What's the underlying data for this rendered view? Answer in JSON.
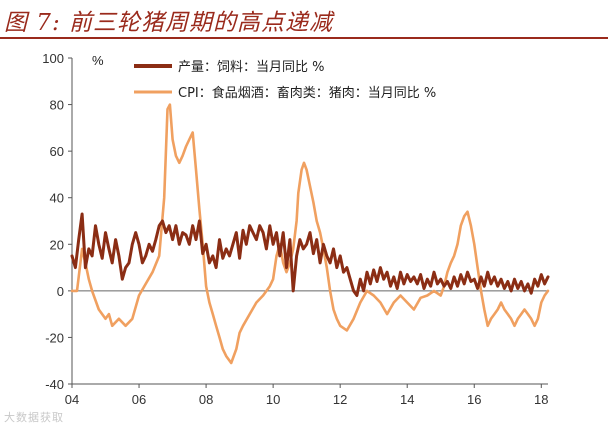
{
  "figure": {
    "title": "图 7:  前三轮猪周期的高点递减",
    "watermark": "大数据获取"
  },
  "colors": {
    "title": "#9a2a1c",
    "feed_series": "#8b2d14",
    "cpi_series": "#f0a060"
  },
  "chart_data": {
    "type": "line",
    "unit": "%",
    "ylim": [
      -40,
      100
    ],
    "yticks": [
      -40,
      -20,
      0,
      20,
      40,
      60,
      80,
      100
    ],
    "xlim": [
      2004,
      2018.2
    ],
    "xticks": [
      {
        "value": 2004,
        "label": "04"
      },
      {
        "value": 2006,
        "label": "06"
      },
      {
        "value": 2008,
        "label": "08"
      },
      {
        "value": 2010,
        "label": "10"
      },
      {
        "value": 2012,
        "label": "12"
      },
      {
        "value": 2014,
        "label": "14"
      },
      {
        "value": 2016,
        "label": "16"
      },
      {
        "value": 2018,
        "label": "18"
      }
    ],
    "legend_position": "top-center",
    "series": [
      {
        "name": "产量：饲料：当月同比 %",
        "color": "#8b2d14",
        "points": [
          [
            2004.0,
            15
          ],
          [
            2004.1,
            10
          ],
          [
            2004.2,
            22
          ],
          [
            2004.3,
            33
          ],
          [
            2004.4,
            10
          ],
          [
            2004.5,
            18
          ],
          [
            2004.6,
            15
          ],
          [
            2004.7,
            28
          ],
          [
            2004.8,
            20
          ],
          [
            2004.9,
            14
          ],
          [
            2005.0,
            25
          ],
          [
            2005.1,
            18
          ],
          [
            2005.2,
            12
          ],
          [
            2005.3,
            22
          ],
          [
            2005.4,
            15
          ],
          [
            2005.5,
            5
          ],
          [
            2005.6,
            10
          ],
          [
            2005.7,
            12
          ],
          [
            2005.8,
            20
          ],
          [
            2005.9,
            25
          ],
          [
            2006.0,
            20
          ],
          [
            2006.1,
            12
          ],
          [
            2006.2,
            15
          ],
          [
            2006.3,
            20
          ],
          [
            2006.4,
            17
          ],
          [
            2006.5,
            22
          ],
          [
            2006.6,
            28
          ],
          [
            2006.7,
            30
          ],
          [
            2006.8,
            25
          ],
          [
            2006.9,
            28
          ],
          [
            2007.0,
            22
          ],
          [
            2007.1,
            28
          ],
          [
            2007.2,
            20
          ],
          [
            2007.3,
            25
          ],
          [
            2007.4,
            24
          ],
          [
            2007.5,
            20
          ],
          [
            2007.6,
            28
          ],
          [
            2007.7,
            22
          ],
          [
            2007.8,
            30
          ],
          [
            2007.9,
            16
          ],
          [
            2008.0,
            20
          ],
          [
            2008.1,
            12
          ],
          [
            2008.2,
            15
          ],
          [
            2008.3,
            10
          ],
          [
            2008.4,
            22
          ],
          [
            2008.5,
            14
          ],
          [
            2008.6,
            18
          ],
          [
            2008.7,
            15
          ],
          [
            2008.8,
            20
          ],
          [
            2008.9,
            25
          ],
          [
            2009.0,
            14
          ],
          [
            2009.1,
            26
          ],
          [
            2009.2,
            20
          ],
          [
            2009.3,
            28
          ],
          [
            2009.4,
            25
          ],
          [
            2009.5,
            22
          ],
          [
            2009.6,
            28
          ],
          [
            2009.7,
            25
          ],
          [
            2009.8,
            18
          ],
          [
            2009.9,
            28
          ],
          [
            2010.0,
            20
          ],
          [
            2010.1,
            25
          ],
          [
            2010.2,
            15
          ],
          [
            2010.3,
            25
          ],
          [
            2010.4,
            10
          ],
          [
            2010.5,
            22
          ],
          [
            2010.6,
            0
          ],
          [
            2010.7,
            15
          ],
          [
            2010.8,
            22
          ],
          [
            2010.9,
            18
          ],
          [
            2011.0,
            20
          ],
          [
            2011.1,
            25
          ],
          [
            2011.2,
            16
          ],
          [
            2011.3,
            22
          ],
          [
            2011.4,
            12
          ],
          [
            2011.5,
            20
          ],
          [
            2011.6,
            15
          ],
          [
            2011.7,
            12
          ],
          [
            2011.8,
            18
          ],
          [
            2011.9,
            10
          ],
          [
            2012.0,
            15
          ],
          [
            2012.1,
            8
          ],
          [
            2012.2,
            10
          ],
          [
            2012.3,
            5
          ],
          [
            2012.4,
            0
          ],
          [
            2012.5,
            -2
          ],
          [
            2012.6,
            5
          ],
          [
            2012.7,
            0
          ],
          [
            2012.8,
            8
          ],
          [
            2012.9,
            3
          ],
          [
            2013.0,
            9
          ],
          [
            2013.1,
            4
          ],
          [
            2013.2,
            10
          ],
          [
            2013.3,
            5
          ],
          [
            2013.4,
            8
          ],
          [
            2013.5,
            2
          ],
          [
            2013.6,
            6
          ],
          [
            2013.7,
            1
          ],
          [
            2013.8,
            8
          ],
          [
            2013.9,
            3
          ],
          [
            2014.0,
            7
          ],
          [
            2014.1,
            4
          ],
          [
            2014.2,
            6
          ],
          [
            2014.3,
            3
          ],
          [
            2014.4,
            7
          ],
          [
            2014.5,
            1
          ],
          [
            2014.6,
            5
          ],
          [
            2014.7,
            2
          ],
          [
            2014.8,
            8
          ],
          [
            2014.9,
            3
          ],
          [
            2015.0,
            5
          ],
          [
            2015.1,
            2
          ],
          [
            2015.2,
            4
          ],
          [
            2015.3,
            1
          ],
          [
            2015.4,
            6
          ],
          [
            2015.5,
            2
          ],
          [
            2015.6,
            7
          ],
          [
            2015.7,
            3
          ],
          [
            2015.8,
            8
          ],
          [
            2015.9,
            4
          ],
          [
            2016.0,
            5
          ],
          [
            2016.1,
            1
          ],
          [
            2016.2,
            6
          ],
          [
            2016.3,
            2
          ],
          [
            2016.4,
            8
          ],
          [
            2016.5,
            3
          ],
          [
            2016.6,
            6
          ],
          [
            2016.7,
            2
          ],
          [
            2016.8,
            5
          ],
          [
            2016.9,
            1
          ],
          [
            2017.0,
            4
          ],
          [
            2017.1,
            0
          ],
          [
            2017.2,
            5
          ],
          [
            2017.3,
            1
          ],
          [
            2017.4,
            4
          ],
          [
            2017.5,
            0
          ],
          [
            2017.6,
            3
          ],
          [
            2017.7,
            -1
          ],
          [
            2017.8,
            5
          ],
          [
            2017.9,
            2
          ],
          [
            2018.0,
            7
          ],
          [
            2018.1,
            3
          ],
          [
            2018.2,
            6
          ]
        ]
      },
      {
        "name": "CPI：食品烟酒：畜肉类：猪肉：当月同比 %",
        "color": "#f0a060",
        "points": [
          [
            2004.0,
            0
          ],
          [
            2004.15,
            0
          ],
          [
            2004.3,
            18
          ],
          [
            2004.4,
            12
          ],
          [
            2004.5,
            5
          ],
          [
            2004.6,
            0
          ],
          [
            2004.8,
            -8
          ],
          [
            2005.0,
            -12
          ],
          [
            2005.1,
            -10
          ],
          [
            2005.2,
            -15
          ],
          [
            2005.4,
            -12
          ],
          [
            2005.6,
            -15
          ],
          [
            2005.8,
            -12
          ],
          [
            2006.0,
            -2
          ],
          [
            2006.2,
            3
          ],
          [
            2006.4,
            8
          ],
          [
            2006.6,
            15
          ],
          [
            2006.75,
            40
          ],
          [
            2006.85,
            78
          ],
          [
            2006.92,
            80
          ],
          [
            2007.0,
            65
          ],
          [
            2007.1,
            58
          ],
          [
            2007.2,
            55
          ],
          [
            2007.3,
            58
          ],
          [
            2007.4,
            62
          ],
          [
            2007.5,
            65
          ],
          [
            2007.6,
            68
          ],
          [
            2007.7,
            52
          ],
          [
            2007.8,
            35
          ],
          [
            2007.9,
            20
          ],
          [
            2008.0,
            2
          ],
          [
            2008.1,
            -5
          ],
          [
            2008.2,
            -10
          ],
          [
            2008.3,
            -15
          ],
          [
            2008.4,
            -20
          ],
          [
            2008.5,
            -25
          ],
          [
            2008.6,
            -28
          ],
          [
            2008.75,
            -31
          ],
          [
            2008.9,
            -25
          ],
          [
            2009.0,
            -18
          ],
          [
            2009.1,
            -15
          ],
          [
            2009.3,
            -10
          ],
          [
            2009.5,
            -5
          ],
          [
            2009.7,
            -2
          ],
          [
            2009.9,
            2
          ],
          [
            2010.0,
            5
          ],
          [
            2010.1,
            15
          ],
          [
            2010.2,
            20
          ],
          [
            2010.3,
            12
          ],
          [
            2010.4,
            8
          ],
          [
            2010.5,
            12
          ],
          [
            2010.6,
            18
          ],
          [
            2010.7,
            30
          ],
          [
            2010.75,
            42
          ],
          [
            2010.85,
            52
          ],
          [
            2010.92,
            55
          ],
          [
            2011.0,
            52
          ],
          [
            2011.1,
            45
          ],
          [
            2011.2,
            38
          ],
          [
            2011.3,
            30
          ],
          [
            2011.4,
            25
          ],
          [
            2011.5,
            18
          ],
          [
            2011.6,
            10
          ],
          [
            2011.7,
            0
          ],
          [
            2011.8,
            -8
          ],
          [
            2011.9,
            -12
          ],
          [
            2012.0,
            -15
          ],
          [
            2012.2,
            -17
          ],
          [
            2012.4,
            -12
          ],
          [
            2012.6,
            -5
          ],
          [
            2012.8,
            0
          ],
          [
            2013.0,
            -2
          ],
          [
            2013.2,
            -5
          ],
          [
            2013.4,
            -10
          ],
          [
            2013.6,
            -5
          ],
          [
            2013.8,
            -2
          ],
          [
            2014.0,
            -5
          ],
          [
            2014.2,
            -8
          ],
          [
            2014.4,
            -3
          ],
          [
            2014.6,
            -2
          ],
          [
            2014.8,
            0
          ],
          [
            2015.0,
            -2
          ],
          [
            2015.1,
            2
          ],
          [
            2015.2,
            8
          ],
          [
            2015.3,
            12
          ],
          [
            2015.4,
            15
          ],
          [
            2015.5,
            20
          ],
          [
            2015.6,
            28
          ],
          [
            2015.7,
            32
          ],
          [
            2015.8,
            34
          ],
          [
            2015.9,
            28
          ],
          [
            2016.0,
            20
          ],
          [
            2016.1,
            10
          ],
          [
            2016.2,
            0
          ],
          [
            2016.3,
            -8
          ],
          [
            2016.4,
            -15
          ],
          [
            2016.5,
            -12
          ],
          [
            2016.6,
            -10
          ],
          [
            2016.7,
            -8
          ],
          [
            2016.8,
            -5
          ],
          [
            2016.9,
            -8
          ],
          [
            2017.0,
            -10
          ],
          [
            2017.1,
            -12
          ],
          [
            2017.2,
            -15
          ],
          [
            2017.3,
            -12
          ],
          [
            2017.4,
            -10
          ],
          [
            2017.5,
            -8
          ],
          [
            2017.6,
            -10
          ],
          [
            2017.7,
            -12
          ],
          [
            2017.8,
            -15
          ],
          [
            2017.9,
            -12
          ],
          [
            2018.0,
            -5
          ],
          [
            2018.1,
            -2
          ],
          [
            2018.2,
            0
          ]
        ]
      }
    ]
  }
}
